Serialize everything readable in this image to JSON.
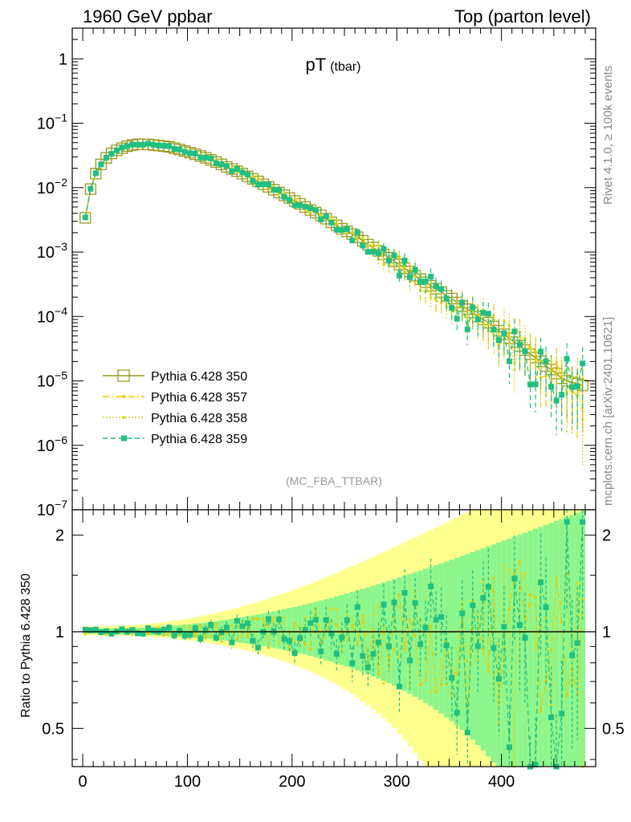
{
  "header": {
    "left": "1960 GeV ppbar",
    "right": "Top (parton level)"
  },
  "side_label_top": "Rivet 4.1.0, ≥ 100k events",
  "side_label_bottom": "mcplots.cern.ch [arXiv:2401.10621]",
  "chart_data": [
    {
      "type": "line",
      "title": "pT",
      "title_sub": "(tbar)",
      "analysis_tag": "(MC_FBA_TTBAR)",
      "yscale": "log",
      "ylim": [
        1e-07,
        3
      ],
      "xlim": [
        -10,
        490
      ],
      "y_ticks": [
        {
          "value": 1e-07,
          "label_base": "10",
          "label_exp": "−7"
        },
        {
          "value": 1e-06,
          "label_base": "10",
          "label_exp": "−6"
        },
        {
          "value": 1e-05,
          "label_base": "10",
          "label_exp": "−5"
        },
        {
          "value": 0.0001,
          "label_base": "10",
          "label_exp": "−4"
        },
        {
          "value": 0.001,
          "label_base": "10",
          "label_exp": "−3"
        },
        {
          "value": 0.01,
          "label_base": "10",
          "label_exp": "−2"
        },
        {
          "value": 0.1,
          "label_base": "10",
          "label_exp": "−1"
        },
        {
          "value": 1,
          "label_base": "1",
          "label_exp": ""
        }
      ],
      "legend_position": "lower-left",
      "series": [
        {
          "name": "Pythia 6.428 350",
          "color": "#9a9a1f",
          "style": "solid",
          "marker": "open-square"
        },
        {
          "name": "Pythia 6.428 357",
          "color": "#e8c800",
          "style": "dashdot",
          "marker": "dot"
        },
        {
          "name": "Pythia 6.428 358",
          "color": "#d8d820",
          "style": "dotted",
          "marker": "dot"
        },
        {
          "name": "Pythia 6.428 359",
          "color": "#20c080",
          "style": "dashed",
          "marker": "filled-square"
        }
      ],
      "x": [
        2.5,
        7.5,
        12.5,
        17.5,
        22.5,
        27.5,
        32.5,
        37.5,
        42.5,
        47.5,
        52.5,
        57.5,
        62.5,
        67.5,
        72.5,
        77.5,
        82.5,
        87.5,
        92.5,
        97.5,
        102.5,
        107.5,
        112.5,
        117.5,
        122.5,
        127.5,
        132.5,
        137.5,
        142.5,
        147.5,
        152.5,
        157.5,
        162.5,
        167.5,
        172.5,
        177.5,
        182.5,
        187.5,
        192.5,
        197.5,
        202.5,
        207.5,
        212.5,
        217.5,
        222.5,
        227.5,
        232.5,
        237.5,
        242.5,
        247.5,
        252.5,
        257.5,
        262.5,
        267.5,
        272.5,
        277.5,
        282.5,
        287.5,
        292.5,
        297.5,
        302.5,
        307.5,
        312.5,
        317.5,
        322.5,
        327.5,
        332.5,
        337.5,
        342.5,
        347.5,
        352.5,
        357.5,
        362.5,
        367.5,
        372.5,
        377.5,
        382.5,
        387.5,
        392.5,
        397.5,
        402.5,
        407.5,
        412.5,
        417.5,
        422.5,
        427.5,
        432.5,
        437.5,
        442.5,
        447.5,
        452.5,
        457.5,
        462.5,
        467.5,
        472.5,
        477.5
      ],
      "values": [
        0.0034,
        0.0095,
        0.0165,
        0.023,
        0.029,
        0.034,
        0.038,
        0.041,
        0.044,
        0.046,
        0.047,
        0.047,
        0.047,
        0.046,
        0.045,
        0.044,
        0.043,
        0.041,
        0.039,
        0.037,
        0.035,
        0.033,
        0.031,
        0.029,
        0.027,
        0.025,
        0.023,
        0.021,
        0.0195,
        0.018,
        0.0165,
        0.015,
        0.0137,
        0.0125,
        0.0113,
        0.0103,
        0.0093,
        0.0084,
        0.0076,
        0.0069,
        0.0062,
        0.0056,
        0.005,
        0.0045,
        0.0041,
        0.0037,
        0.0033,
        0.0029,
        0.0026,
        0.0023,
        0.0021,
        0.0019,
        0.0017,
        0.0015,
        0.0013,
        0.00118,
        0.00104,
        0.00092,
        0.00082,
        0.00072,
        0.00064,
        0.00056,
        0.0005,
        0.00043,
        0.00038,
        0.00034,
        0.0003,
        0.00027,
        0.00024,
        0.00021,
        0.00019,
        0.000165,
        0.000145,
        0.00013,
        0.000115,
        0.0001,
        9e-05,
        8e-05,
        7e-05,
        6e-05,
        5.3e-05,
        4.6e-05,
        4e-05,
        3.5e-05,
        3e-05,
        2.6e-05,
        2.3e-05,
        2e-05,
        1.7e-05,
        1.5e-05,
        1.3e-05,
        1.1e-05,
        1e-05,
        9.5e-06,
        9e-06,
        8.5e-06
      ]
    },
    {
      "type": "line",
      "ylabel": "Ratio to Pythia 6.428 350",
      "yscale": "log",
      "ylim": [
        0.38,
        2.4
      ],
      "xlim": [
        -10,
        490
      ],
      "x_ticks": [
        0,
        100,
        200,
        300,
        400
      ],
      "y_ticks": [
        0.5,
        1,
        2
      ],
      "reference_line": 1,
      "series": [
        {
          "name": "Pythia 6.428 350",
          "color": "#9a9a1f",
          "style": "solid"
        },
        {
          "name": "Pythia 6.428 357",
          "color": "#e8c800",
          "style": "dashdot"
        },
        {
          "name": "Pythia 6.428 358",
          "color": "#d8d820",
          "style": "dotted"
        },
        {
          "name": "Pythia 6.428 359",
          "color": "#20c080",
          "style": "dashed"
        }
      ],
      "band_colors": {
        "yellow": "#ffff8c",
        "green": "#8cf58c"
      }
    }
  ]
}
